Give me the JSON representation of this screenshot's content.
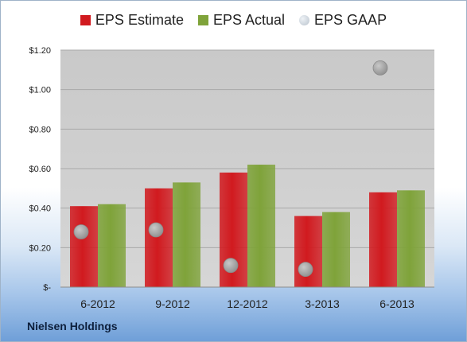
{
  "chart_data": {
    "type": "bar",
    "categories": [
      "6-2012",
      "9-2012",
      "12-2012",
      "3-2013",
      "6-2013"
    ],
    "series": [
      {
        "name": "EPS Estimate",
        "values": [
          0.41,
          0.5,
          0.58,
          0.36,
          0.48
        ],
        "color": "#d11a1f",
        "mark": "bar"
      },
      {
        "name": "EPS Actual",
        "values": [
          0.42,
          0.53,
          0.62,
          0.38,
          0.49
        ],
        "color": "#7fa33a",
        "mark": "bar"
      },
      {
        "name": "EPS GAAP",
        "values": [
          0.28,
          0.29,
          0.11,
          0.09,
          1.11
        ],
        "color": "#a9a9a9",
        "mark": "circle"
      }
    ],
    "yticks": [
      0,
      0.2,
      0.4,
      0.6,
      0.8,
      1.0,
      1.2
    ],
    "ytick_labels": [
      "$-",
      "$0.20",
      "$0.40",
      "$0.60",
      "$0.80",
      "$1.00",
      "$1.20"
    ],
    "ylim": [
      0,
      1.2
    ],
    "legend_position": "top",
    "grid": true,
    "plot_background": "#cfcfcf"
  },
  "footer": {
    "company": "Nielsen Holdings"
  }
}
